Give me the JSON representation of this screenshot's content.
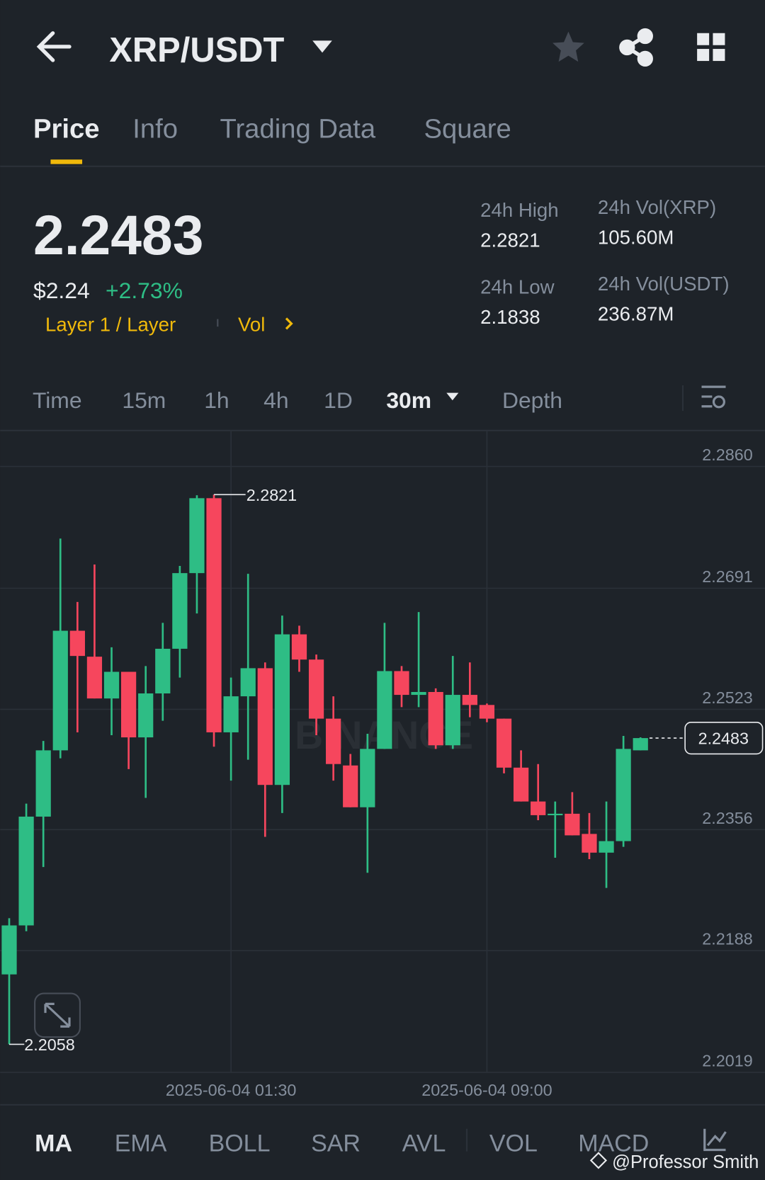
{
  "header": {
    "pair": "XRP/USDT"
  },
  "tabs": [
    "Price",
    "Info",
    "Trading Data",
    "Square"
  ],
  "ticker": {
    "last": "2.2483",
    "usd": "$2.24",
    "change": "+2.73%",
    "tag": "Layer 1 / Layer",
    "vol_link": "Vol",
    "stats": [
      {
        "label": "24h High",
        "value": "2.2821"
      },
      {
        "label": "24h Vol(XRP)",
        "value": "105.60M"
      },
      {
        "label": "24h Low",
        "value": "2.1838"
      },
      {
        "label": "24h Vol(USDT)",
        "value": "236.87M"
      }
    ]
  },
  "timeframes": [
    "Time",
    "15m",
    "1h",
    "4h",
    "1D",
    "30m",
    "Depth"
  ],
  "indicators": [
    "MA",
    "EMA",
    "BOLL",
    "SAR",
    "AVL",
    "VOL",
    "MACD"
  ],
  "watermark": "BINANCE",
  "credit": "@Professor Smith",
  "chart_data": {
    "type": "candlestick",
    "categories": [
      null,
      null,
      null,
      null,
      null,
      null,
      null,
      null,
      null,
      null,
      null,
      null,
      null,
      "2025-06-04 01:30",
      null,
      null,
      null,
      null,
      null,
      null,
      null,
      null,
      null,
      null,
      null,
      null,
      null,
      null,
      "2025-06-04 09:00",
      null,
      null,
      null,
      null,
      null,
      null,
      null,
      null,
      null
    ],
    "open": [
      2.2155,
      2.2223,
      2.2374,
      2.2466,
      2.2632,
      2.2596,
      2.2538,
      2.2575,
      2.2484,
      2.2545,
      2.2607,
      2.2712,
      2.2816,
      2.2491,
      2.2541,
      2.258,
      2.2418,
      2.2627,
      2.2592,
      2.251,
      2.2445,
      2.2387,
      2.2468,
      2.2576,
      2.2543,
      2.2547,
      2.2473,
      2.2543,
      2.2529,
      2.251,
      2.2442,
      2.2395,
      2.2376,
      2.2378,
      2.235,
      2.2324,
      2.234,
      2.2466
    ],
    "high": [
      2.2233,
      2.2392,
      2.2479,
      2.276,
      2.2672,
      2.2724,
      2.2609,
      2.2575,
      2.2583,
      2.2643,
      2.2722,
      2.282,
      2.2821,
      2.2567,
      2.2711,
      2.2588,
      2.2653,
      2.2639,
      2.2599,
      2.2541,
      2.2461,
      2.2489,
      2.2643,
      2.2583,
      2.2658,
      2.2552,
      2.2597,
      2.2588,
      2.2531,
      2.251,
      2.2466,
      2.2447,
      2.2395,
      2.2408,
      2.2379,
      2.2395,
      2.2486,
      2.2484
    ],
    "low": [
      2.2058,
      2.2215,
      2.2304,
      2.2455,
      2.2491,
      2.2538,
      2.2487,
      2.244,
      2.24,
      2.2507,
      2.2567,
      2.2656,
      2.2471,
      2.2424,
      2.2453,
      2.2346,
      2.2379,
      2.2575,
      2.2487,
      2.2424,
      2.2387,
      2.2296,
      2.2468,
      2.2526,
      2.2526,
      2.2468,
      2.2468,
      2.2512,
      2.2505,
      2.2434,
      2.2395,
      2.2369,
      2.2317,
      2.2348,
      2.2315,
      2.2275,
      2.2332,
      2.2466
    ],
    "close": [
      2.2223,
      2.2374,
      2.2466,
      2.2632,
      2.2597,
      2.2538,
      2.2575,
      2.2484,
      2.2545,
      2.2607,
      2.2712,
      2.2816,
      2.2491,
      2.2541,
      2.258,
      2.2418,
      2.2627,
      2.2592,
      2.251,
      2.2447,
      2.2387,
      2.2468,
      2.2576,
      2.2543,
      2.2547,
      2.2473,
      2.2543,
      2.2529,
      2.251,
      2.2442,
      2.2395,
      2.2376,
      2.2378,
      2.2348,
      2.2324,
      2.234,
      2.2468,
      2.2483
    ],
    "ylim": [
      2.2019,
      2.291
    ],
    "yticks": [
      {
        "value": 2.286,
        "label": "2.2860"
      },
      2.2691,
      2.2523,
      2.2356,
      2.2188,
      2.2019
    ],
    "up_color": "#2ebd85",
    "down_color": "#f6465d",
    "grid": true
  }
}
